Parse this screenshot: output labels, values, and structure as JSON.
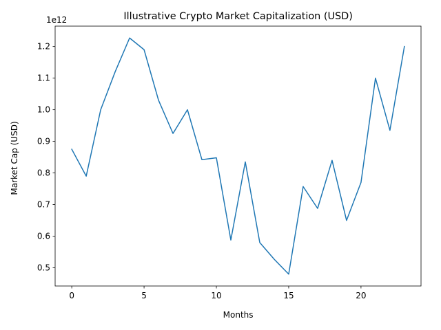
{
  "chart_data": {
    "type": "line",
    "title": "Illustrative Crypto Market Capitalization (USD)",
    "xlabel": "Months",
    "ylabel": "Market Cap (USD)",
    "y_offset_label": "1e12",
    "x_ticks": [
      0,
      5,
      10,
      15,
      20
    ],
    "x_tick_labels": [
      "0",
      "5",
      "10",
      "15",
      "20"
    ],
    "y_ticks": [
      0.5,
      0.6,
      0.7,
      0.8,
      0.9,
      1.0,
      1.1,
      1.2
    ],
    "y_tick_labels": [
      "0.5",
      "0.6",
      "0.7",
      "0.8",
      "0.9",
      "1.0",
      "1.1",
      "1.2"
    ],
    "xlim": [
      -1.15,
      24.15
    ],
    "ylim": [
      0.4425,
      1.2645
    ],
    "grid": false,
    "series": [
      {
        "color": "#1f77b4",
        "x": [
          0,
          1,
          2,
          3,
          4,
          5,
          6,
          7,
          8,
          9,
          10,
          11,
          12,
          13,
          14,
          15,
          16,
          17,
          18,
          19,
          20,
          21,
          22,
          23
        ],
        "values": [
          0.875,
          0.79,
          1.0,
          1.12,
          1.227,
          1.19,
          1.03,
          0.925,
          1.0,
          0.842,
          0.848,
          0.588,
          0.835,
          0.58,
          0.527,
          0.48,
          0.757,
          0.688,
          0.84,
          0.65,
          0.77,
          1.1,
          0.935,
          1.2
        ]
      }
    ]
  }
}
